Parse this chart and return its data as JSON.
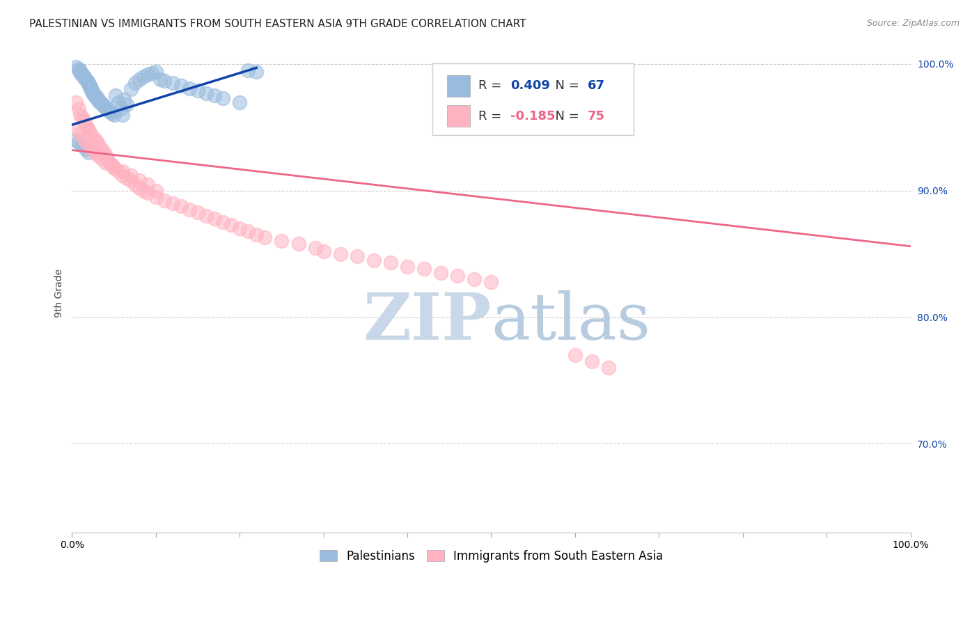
{
  "title": "PALESTINIAN VS IMMIGRANTS FROM SOUTH EASTERN ASIA 9TH GRADE CORRELATION CHART",
  "source": "Source: ZipAtlas.com",
  "ylabel": "9th Grade",
  "xlim": [
    0.0,
    1.0
  ],
  "ylim": [
    0.63,
    1.008
  ],
  "yticks": [
    0.7,
    0.8,
    0.9,
    1.0
  ],
  "ytick_labels": [
    "70.0%",
    "80.0%",
    "90.0%",
    "100.0%"
  ],
  "xticks": [
    0.0,
    0.1,
    0.2,
    0.3,
    0.4,
    0.5,
    0.6,
    0.7,
    0.8,
    0.9,
    1.0
  ],
  "xtick_labels": [
    "0.0%",
    "",
    "",
    "",
    "",
    "",
    "",
    "",
    "",
    "",
    "100.0%"
  ],
  "legend_label1": "Palestinians",
  "legend_label2": "Immigrants from South Eastern Asia",
  "R1": 0.409,
  "N1": 67,
  "R2": -0.185,
  "N2": 75,
  "blue_color": "#99BBDD",
  "pink_color": "#FFB3C1",
  "blue_line_color": "#1144AA",
  "pink_line_color": "#EE6688",
  "watermark_zip": "ZIP",
  "watermark_atlas": "atlas",
  "watermark_color_zip": "#C8D8E8",
  "watermark_color_atlas": "#B8CCE0",
  "grid_color": "#CCCCCC",
  "blue_scatter_x": [
    0.005,
    0.008,
    0.01,
    0.01,
    0.012,
    0.013,
    0.015,
    0.015,
    0.016,
    0.018,
    0.019,
    0.02,
    0.02,
    0.021,
    0.022,
    0.022,
    0.023,
    0.024,
    0.025,
    0.025,
    0.026,
    0.028,
    0.028,
    0.03,
    0.03,
    0.032,
    0.033,
    0.035,
    0.036,
    0.038,
    0.04,
    0.04,
    0.042,
    0.044,
    0.046,
    0.048,
    0.05,
    0.052,
    0.055,
    0.058,
    0.06,
    0.062,
    0.065,
    0.07,
    0.075,
    0.08,
    0.085,
    0.09,
    0.095,
    0.1,
    0.105,
    0.11,
    0.12,
    0.13,
    0.14,
    0.15,
    0.16,
    0.17,
    0.18,
    0.2,
    0.21,
    0.22,
    0.005,
    0.008,
    0.012,
    0.016,
    0.02
  ],
  "blue_scatter_y": [
    0.998,
    0.996,
    0.995,
    0.993,
    0.992,
    0.991,
    0.99,
    0.989,
    0.988,
    0.987,
    0.986,
    0.985,
    0.984,
    0.983,
    0.982,
    0.981,
    0.98,
    0.979,
    0.978,
    0.977,
    0.976,
    0.975,
    0.974,
    0.973,
    0.972,
    0.971,
    0.97,
    0.969,
    0.968,
    0.967,
    0.966,
    0.965,
    0.964,
    0.963,
    0.962,
    0.961,
    0.96,
    0.975,
    0.97,
    0.965,
    0.96,
    0.972,
    0.968,
    0.98,
    0.985,
    0.988,
    0.99,
    0.992,
    0.993,
    0.994,
    0.988,
    0.987,
    0.985,
    0.983,
    0.981,
    0.979,
    0.977,
    0.975,
    0.973,
    0.97,
    0.995,
    0.994,
    0.94,
    0.938,
    0.936,
    0.933,
    0.93
  ],
  "pink_scatter_x": [
    0.005,
    0.008,
    0.01,
    0.012,
    0.014,
    0.016,
    0.018,
    0.02,
    0.022,
    0.025,
    0.028,
    0.03,
    0.032,
    0.035,
    0.038,
    0.04,
    0.042,
    0.045,
    0.048,
    0.05,
    0.055,
    0.06,
    0.065,
    0.07,
    0.075,
    0.08,
    0.085,
    0.09,
    0.1,
    0.11,
    0.12,
    0.13,
    0.14,
    0.15,
    0.16,
    0.17,
    0.18,
    0.19,
    0.2,
    0.21,
    0.22,
    0.23,
    0.25,
    0.27,
    0.29,
    0.3,
    0.32,
    0.34,
    0.36,
    0.38,
    0.4,
    0.42,
    0.44,
    0.46,
    0.48,
    0.5,
    0.008,
    0.01,
    0.015,
    0.018,
    0.022,
    0.025,
    0.028,
    0.03,
    0.035,
    0.04,
    0.05,
    0.06,
    0.07,
    0.08,
    0.09,
    0.1,
    0.6,
    0.62,
    0.64
  ],
  "pink_scatter_y": [
    0.97,
    0.965,
    0.96,
    0.958,
    0.955,
    0.952,
    0.95,
    0.948,
    0.945,
    0.942,
    0.94,
    0.938,
    0.935,
    0.933,
    0.93,
    0.928,
    0.925,
    0.922,
    0.92,
    0.918,
    0.915,
    0.912,
    0.91,
    0.908,
    0.905,
    0.902,
    0.9,
    0.898,
    0.895,
    0.892,
    0.89,
    0.888,
    0.885,
    0.883,
    0.88,
    0.878,
    0.875,
    0.873,
    0.87,
    0.868,
    0.865,
    0.863,
    0.86,
    0.858,
    0.855,
    0.852,
    0.85,
    0.848,
    0.845,
    0.843,
    0.84,
    0.838,
    0.835,
    0.833,
    0.83,
    0.828,
    0.948,
    0.945,
    0.94,
    0.938,
    0.935,
    0.932,
    0.93,
    0.928,
    0.925,
    0.922,
    0.918,
    0.915,
    0.912,
    0.908,
    0.905,
    0.9,
    0.77,
    0.765,
    0.76
  ],
  "title_fontsize": 11,
  "axis_label_fontsize": 10,
  "tick_fontsize": 10,
  "legend_fontsize": 12,
  "source_fontsize": 9,
  "blue_trend_x_start": 0.0,
  "blue_trend_x_end": 0.22,
  "blue_trend_y_start": 0.952,
  "blue_trend_y_end": 0.997,
  "pink_trend_x_start": 0.0,
  "pink_trend_x_end": 1.0,
  "pink_trend_y_start": 0.932,
  "pink_trend_y_end": 0.856
}
